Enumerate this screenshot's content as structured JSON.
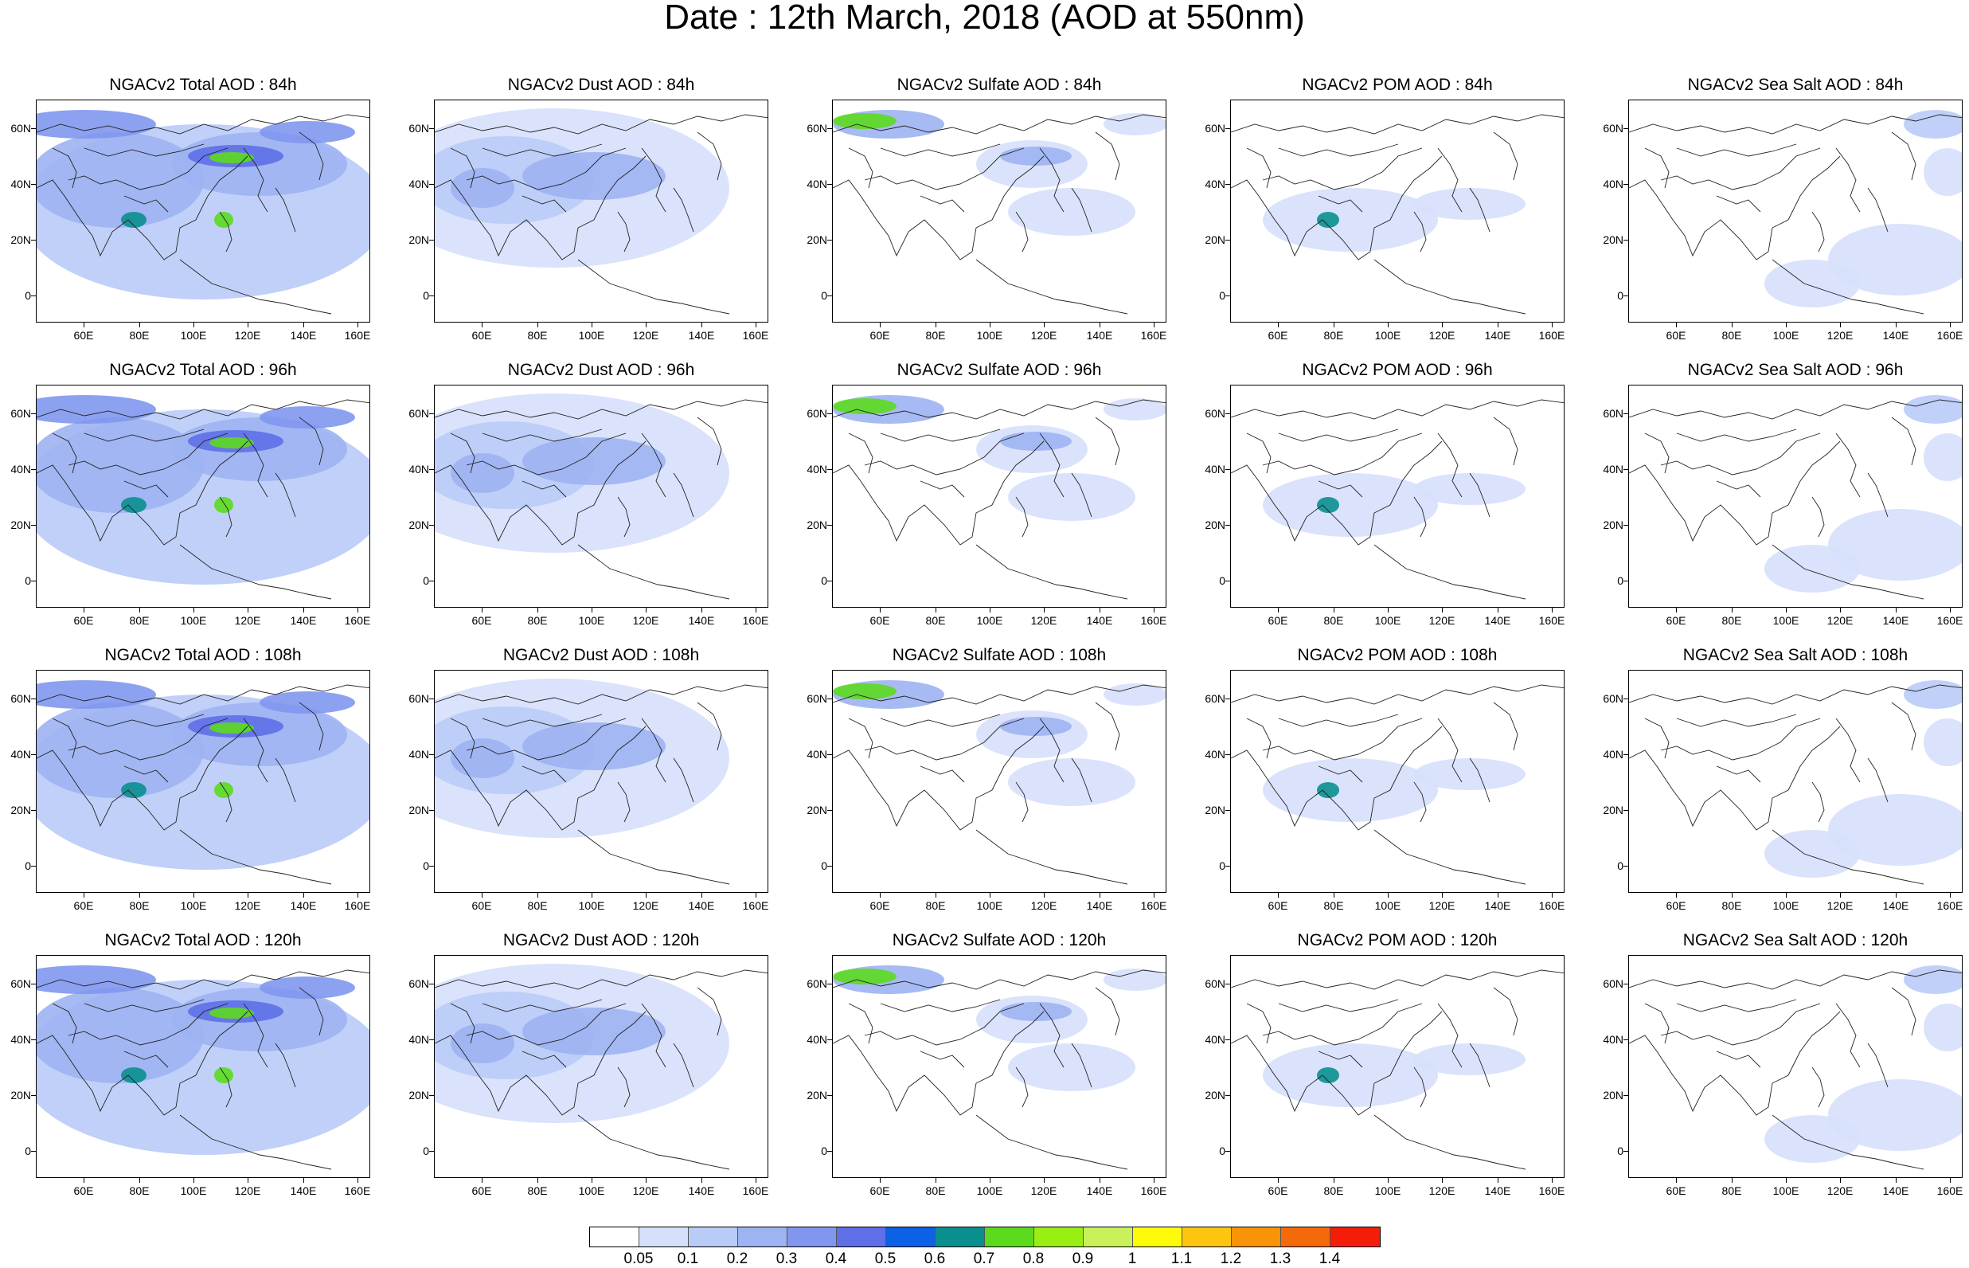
{
  "title": "Date : 12th March, 2018 (AOD at 550nm)",
  "axis": {
    "lat_labels": [
      "60N",
      "40N",
      "20N",
      "0"
    ],
    "lon_labels": [
      "60E",
      "80E",
      "100E",
      "120E",
      "140E",
      "160E"
    ]
  },
  "colorbar": {
    "labels": [
      "0.05",
      "0.1",
      "0.2",
      "0.3",
      "0.4",
      "0.5",
      "0.6",
      "0.7",
      "0.8",
      "0.9",
      "1",
      "1.1",
      "1.2",
      "1.3",
      "1.4"
    ],
    "colors": [
      "#ffffff",
      "#d6e0fb",
      "#b9cbf7",
      "#9db3f2",
      "#8197ef",
      "#5e6fe8",
      "#0d61e6",
      "#0a8f8f",
      "#5cda1e",
      "#99ee12",
      "#c9f25a",
      "#fdfb0a",
      "#fcc610",
      "#f99408",
      "#f46a0a",
      "#f31d0a"
    ]
  },
  "panels": [
    {
      "title": "NGACv2 Total AOD : 84h",
      "type": "total"
    },
    {
      "title": "NGACv2 Dust AOD : 84h",
      "type": "dust"
    },
    {
      "title": "NGACv2 Sulfate AOD : 84h",
      "type": "sulfate"
    },
    {
      "title": "NGACv2 POM AOD : 84h",
      "type": "pom"
    },
    {
      "title": "NGACv2 Sea Salt AOD : 84h",
      "type": "seasalt"
    },
    {
      "title": "NGACv2 Total AOD : 96h",
      "type": "total"
    },
    {
      "title": "NGACv2 Dust AOD : 96h",
      "type": "dust"
    },
    {
      "title": "NGACv2 Sulfate AOD : 96h",
      "type": "sulfate"
    },
    {
      "title": "NGACv2 POM AOD : 96h",
      "type": "pom"
    },
    {
      "title": "NGACv2 Sea Salt AOD : 96h",
      "type": "seasalt"
    },
    {
      "title": "NGACv2 Total AOD : 108h",
      "type": "total"
    },
    {
      "title": "NGACv2 Dust AOD : 108h",
      "type": "dust"
    },
    {
      "title": "NGACv2 Sulfate AOD : 108h",
      "type": "sulfate"
    },
    {
      "title": "NGACv2 POM AOD : 108h",
      "type": "pom"
    },
    {
      "title": "NGACv2 Sea Salt AOD : 108h",
      "type": "seasalt"
    },
    {
      "title": "NGACv2 Total AOD : 120h",
      "type": "total"
    },
    {
      "title": "NGACv2 Dust AOD : 120h",
      "type": "dust"
    },
    {
      "title": "NGACv2 Sulfate AOD : 120h",
      "type": "sulfate"
    },
    {
      "title": "NGACv2 POM AOD : 120h",
      "type": "pom"
    },
    {
      "title": "NGACv2 Sea Salt  AOD : 120h",
      "type": "seasalt"
    }
  ]
}
